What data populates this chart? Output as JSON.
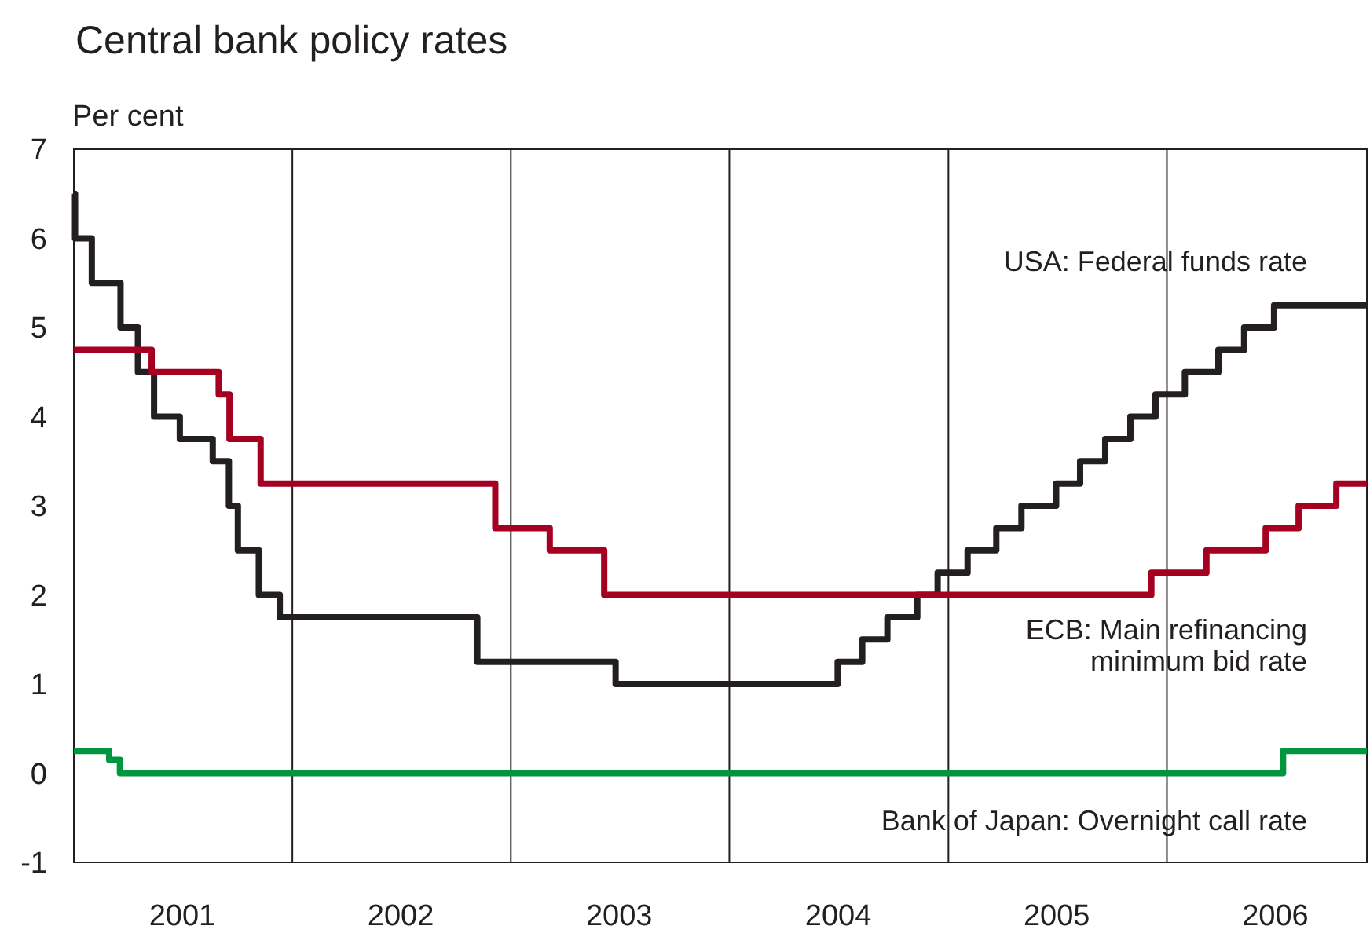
{
  "chart_data": {
    "type": "step",
    "title": "Central bank policy rates",
    "ylabel": "Per cent",
    "xlim": [
      "2001-01-01",
      "2006-12-01"
    ],
    "xticks": [
      {
        "value": "2001-07-01",
        "label": "2001"
      },
      {
        "value": "2002-01-01",
        "label": null
      },
      {
        "value": "2002-07-01",
        "label": "2002"
      },
      {
        "value": "2003-01-01",
        "label": null
      },
      {
        "value": "2003-07-01",
        "label": "2003"
      },
      {
        "value": "2004-01-01",
        "label": null
      },
      {
        "value": "2004-07-01",
        "label": "2004"
      },
      {
        "value": "2005-01-01",
        "label": null
      },
      {
        "value": "2005-07-01",
        "label": "2005"
      },
      {
        "value": "2006-01-01",
        "label": null
      },
      {
        "value": "2006-07-01",
        "label": "2006"
      }
    ],
    "ylim": [
      -1,
      7
    ],
    "yticks": [
      -1,
      0,
      1,
      2,
      3,
      4,
      5,
      6,
      7
    ],
    "grid": "x",
    "legend": false,
    "marker": "none",
    "line_style": "solid",
    "series": [
      {
        "name": "USA: Federal funds rate",
        "color": "#231f20",
        "x": [
          "2001-01-01",
          "2001-01-03",
          "2001-01-31",
          "2001-03-20",
          "2001-04-18",
          "2001-05-15",
          "2001-06-27",
          "2001-08-21",
          "2001-09-17",
          "2001-10-02",
          "2001-11-06",
          "2001-12-11",
          "2002-11-06",
          "2003-06-25",
          "2004-06-30",
          "2004-08-10",
          "2004-09-21",
          "2004-11-10",
          "2004-12-14",
          "2005-02-02",
          "2005-03-22",
          "2005-05-03",
          "2005-06-30",
          "2005-08-09",
          "2005-09-20",
          "2005-11-01",
          "2005-12-13",
          "2006-01-31",
          "2006-03-28",
          "2006-05-10",
          "2006-06-29",
          "2006-12-01"
        ],
        "values": [
          6.5,
          6,
          5.5,
          5,
          4.5,
          4,
          3.75,
          3.5,
          3,
          2.5,
          2,
          1.75,
          1.25,
          1,
          1.25,
          1.5,
          1.75,
          2,
          2.25,
          2.5,
          2.75,
          3,
          3.25,
          3.5,
          3.75,
          4,
          4.25,
          4.5,
          4.75,
          5,
          5.25,
          5.25
        ]
      },
      {
        "name": "ECB: Main refinancing minimum bid rate",
        "color": "#a50021",
        "x": [
          "2001-01-01",
          "2001-05-11",
          "2001-08-31",
          "2001-09-18",
          "2001-11-09",
          "2002-12-06",
          "2003-03-07",
          "2003-06-06",
          "2005-12-06",
          "2006-03-08",
          "2006-06-15",
          "2006-08-09",
          "2006-10-11",
          "2006-12-01"
        ],
        "values": [
          4.75,
          4.5,
          4.25,
          3.75,
          3.25,
          2.75,
          2.5,
          2,
          2.25,
          2.5,
          2.75,
          3,
          3.25,
          3.25
        ]
      },
      {
        "name": "Bank of Japan: Overnight call rate",
        "color": "#00963f",
        "x": [
          "2001-01-01",
          "2001-03-01",
          "2001-03-19",
          "2006-07-14",
          "2006-12-01"
        ],
        "values": [
          0.25,
          0.15,
          0,
          0.25,
          0.25
        ]
      }
    ]
  }
}
